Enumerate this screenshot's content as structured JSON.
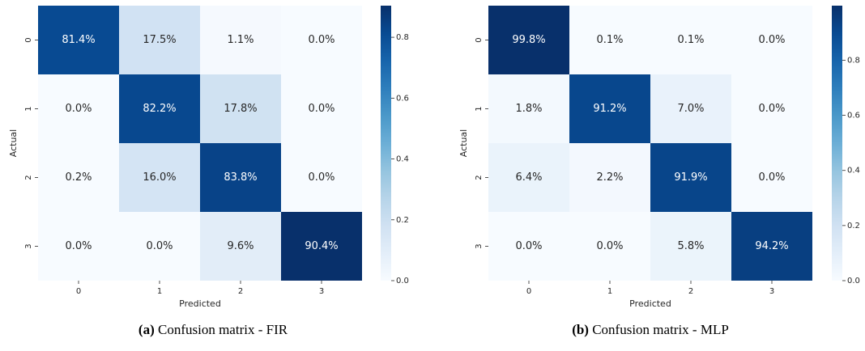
{
  "chart_data": [
    {
      "type": "heatmap",
      "title": "Confusion matrix - FIR",
      "title_label": "(a)",
      "xlabel": "Predicted",
      "ylabel": "Actual",
      "x_categories": [
        "0",
        "1",
        "2",
        "3"
      ],
      "y_categories": [
        "0",
        "1",
        "2",
        "3"
      ],
      "values": [
        [
          0.814,
          0.175,
          0.011,
          0.0
        ],
        [
          0.0,
          0.822,
          0.178,
          0.0
        ],
        [
          0.002,
          0.16,
          0.838,
          0.0
        ],
        [
          0.0,
          0.0,
          0.096,
          0.904
        ]
      ],
      "value_labels": [
        [
          "81.4%",
          "17.5%",
          "1.1%",
          "0.0%"
        ],
        [
          "0.0%",
          "82.2%",
          "17.8%",
          "0.0%"
        ],
        [
          "0.2%",
          "16.0%",
          "83.8%",
          "0.0%"
        ],
        [
          "0.0%",
          "0.0%",
          "9.6%",
          "90.4%"
        ]
      ],
      "colormap": "Blues",
      "clim": [
        0,
        0.904
      ],
      "cticks": [
        {
          "value": 0,
          "label": "0.0"
        },
        {
          "value": 0.2,
          "label": "0.2"
        },
        {
          "value": 0.4,
          "label": "0.4"
        },
        {
          "value": 0.6,
          "label": "0.6"
        },
        {
          "value": 0.8,
          "label": "0.8"
        }
      ]
    },
    {
      "type": "heatmap",
      "title": "Confusion matrix - MLP",
      "title_label": "(b)",
      "xlabel": "Predicted",
      "ylabel": "Actual",
      "x_categories": [
        "0",
        "1",
        "2",
        "3"
      ],
      "y_categories": [
        "0",
        "1",
        "2",
        "3"
      ],
      "values": [
        [
          0.998,
          0.001,
          0.001,
          0.0
        ],
        [
          0.018,
          0.912,
          0.07,
          0.0
        ],
        [
          0.064,
          0.022,
          0.919,
          0.0
        ],
        [
          0.0,
          0.0,
          0.058,
          0.942
        ]
      ],
      "value_labels": [
        [
          "99.8%",
          "0.1%",
          "0.1%",
          "0.0%"
        ],
        [
          "1.8%",
          "91.2%",
          "7.0%",
          "0.0%"
        ],
        [
          "6.4%",
          "2.2%",
          "91.9%",
          "0.0%"
        ],
        [
          "0.0%",
          "0.0%",
          "5.8%",
          "94.2%"
        ]
      ],
      "colormap": "Blues",
      "clim": [
        0,
        0.998
      ],
      "cticks": [
        {
          "value": 0,
          "label": "0.0"
        },
        {
          "value": 0.2,
          "label": "0.2"
        },
        {
          "value": 0.4,
          "label": "0.4"
        },
        {
          "value": 0.6,
          "label": "0.6"
        },
        {
          "value": 0.8,
          "label": "0.8"
        }
      ]
    }
  ]
}
